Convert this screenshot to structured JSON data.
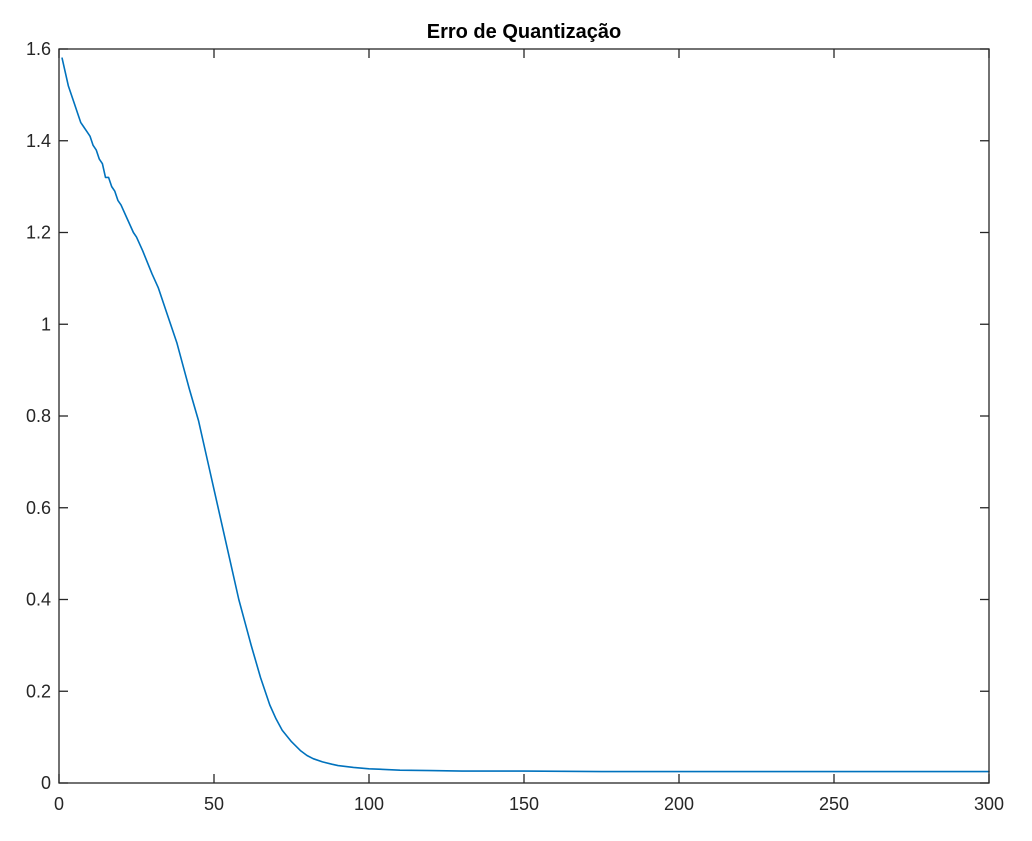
{
  "chart_data": {
    "type": "line",
    "title": "Erro de Quantização",
    "xlabel": "",
    "ylabel": "",
    "xlim": [
      0,
      300
    ],
    "ylim": [
      0,
      1.6
    ],
    "xticks": [
      0,
      50,
      100,
      150,
      200,
      250,
      300
    ],
    "yticks": [
      0,
      0.2,
      0.4,
      0.6,
      0.8,
      1,
      1.2,
      1.4,
      1.6
    ],
    "grid": false,
    "colors": {
      "series": "#0072BD",
      "axes": "#262626"
    },
    "series": [
      {
        "x": [
          1,
          2,
          3,
          4,
          5,
          6,
          7,
          8,
          9,
          10,
          11,
          12,
          13,
          14,
          15,
          16,
          17,
          18,
          19,
          20,
          22,
          24,
          25,
          27,
          30,
          32,
          35,
          38,
          40,
          42,
          45,
          48,
          50,
          52,
          55,
          58,
          60,
          62,
          65,
          68,
          70,
          72,
          75,
          78,
          80,
          82,
          85,
          88,
          90,
          95,
          100,
          110,
          120,
          130,
          140,
          150,
          175,
          200,
          225,
          250,
          275,
          300
        ],
        "y": [
          1.58,
          1.55,
          1.52,
          1.5,
          1.48,
          1.46,
          1.44,
          1.43,
          1.42,
          1.41,
          1.39,
          1.38,
          1.36,
          1.35,
          1.32,
          1.32,
          1.3,
          1.29,
          1.27,
          1.26,
          1.23,
          1.2,
          1.19,
          1.16,
          1.11,
          1.08,
          1.02,
          0.96,
          0.91,
          0.86,
          0.79,
          0.7,
          0.64,
          0.58,
          0.49,
          0.4,
          0.35,
          0.3,
          0.23,
          0.17,
          0.14,
          0.115,
          0.09,
          0.07,
          0.06,
          0.053,
          0.046,
          0.041,
          0.038,
          0.034,
          0.031,
          0.028,
          0.027,
          0.026,
          0.026,
          0.026,
          0.025,
          0.025,
          0.025,
          0.025,
          0.025,
          0.025
        ]
      }
    ]
  }
}
